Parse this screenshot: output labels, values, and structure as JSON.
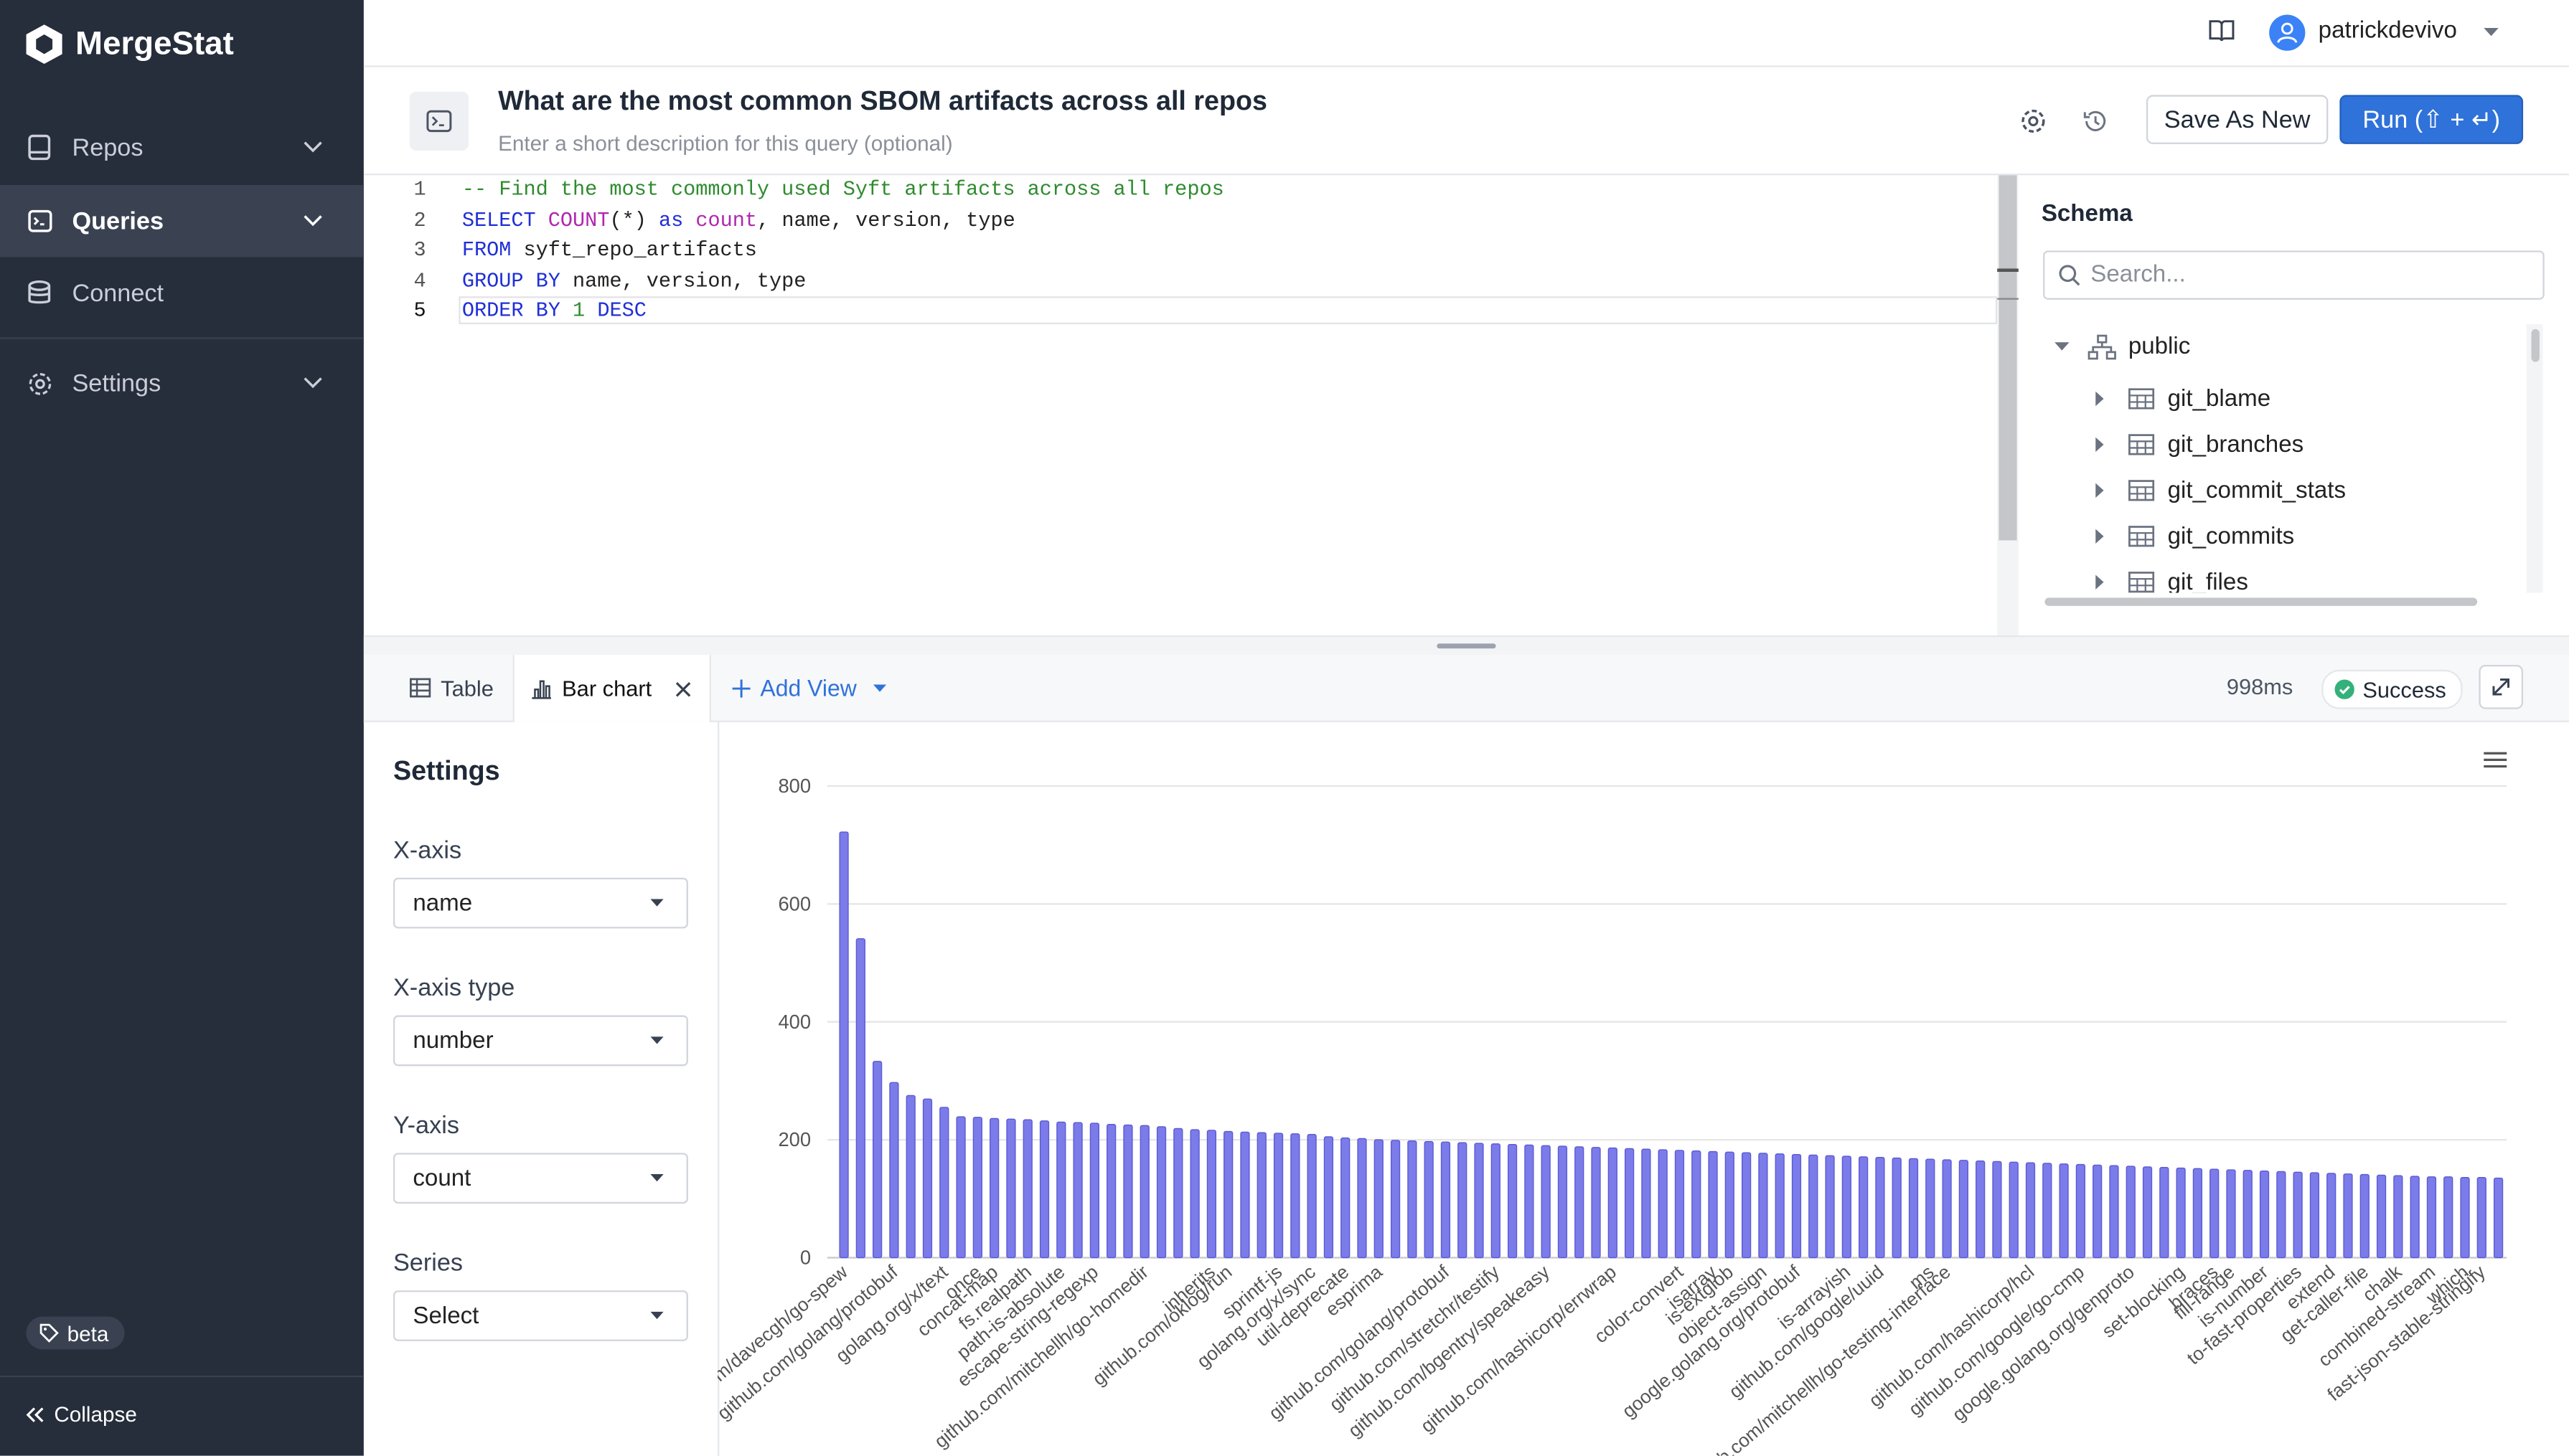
{
  "sidebar": {
    "brand": "MergeStat",
    "nav": [
      {
        "label": "Repos"
      },
      {
        "label": "Queries"
      },
      {
        "label": "Connect"
      },
      {
        "label": "Settings"
      }
    ],
    "badge": "beta",
    "collapse": "Collapse"
  },
  "topbar": {
    "user": "patrickdevivo"
  },
  "query": {
    "title": "What are the most common SBOM artifacts across all repos",
    "description_placeholder": "Enter a short description for this query (optional)",
    "save_button": "Save As New",
    "run_button": "Run (⇧ + ↵)"
  },
  "editor": {
    "lines": [
      {
        "number": 1,
        "tokens": [
          {
            "text": "-- Find the most commonly used Syft artifacts across all repos",
            "color": "#2e8b2e"
          }
        ]
      },
      {
        "number": 2,
        "tokens": [
          {
            "text": "SELECT",
            "color": "#1f2fd6"
          },
          {
            "text": " ",
            "color": "#222222"
          },
          {
            "text": "COUNT",
            "color": "#b026b0"
          },
          {
            "text": "(*) ",
            "color": "#222222"
          },
          {
            "text": "as",
            "color": "#1f2fd6"
          },
          {
            "text": " ",
            "color": "#222222"
          },
          {
            "text": "count",
            "color": "#b026b0"
          },
          {
            "text": ", name, version, type",
            "color": "#222222"
          }
        ]
      },
      {
        "number": 3,
        "tokens": [
          {
            "text": "FROM",
            "color": "#1f2fd6"
          },
          {
            "text": " syft_repo_artifacts",
            "color": "#222222"
          }
        ]
      },
      {
        "number": 4,
        "tokens": [
          {
            "text": "GROUP BY",
            "color": "#1f2fd6"
          },
          {
            "text": " name, version, type",
            "color": "#222222"
          }
        ]
      },
      {
        "number": 5,
        "tokens": [
          {
            "text": "ORDER BY",
            "color": "#1f2fd6"
          },
          {
            "text": " ",
            "color": "#222222"
          },
          {
            "text": "1",
            "color": "#2e8b2e"
          },
          {
            "text": " ",
            "color": "#222222"
          },
          {
            "text": "DESC",
            "color": "#1f2fd6"
          }
        ]
      }
    ]
  },
  "schema": {
    "title": "Schema",
    "search_placeholder": "Search...",
    "root": "public",
    "tables": [
      "git_blame",
      "git_branches",
      "git_commit_stats",
      "git_commits",
      "git_files"
    ]
  },
  "results": {
    "tabs": [
      "Table",
      "Bar chart"
    ],
    "add_view": "Add View",
    "duration": "998ms",
    "status": "Success"
  },
  "settings": {
    "title": "Settings",
    "fields": [
      {
        "label": "X-axis",
        "value": "name"
      },
      {
        "label": "X-axis type",
        "value": "number"
      },
      {
        "label": "Y-axis",
        "value": "count"
      },
      {
        "label": "Series",
        "value": "Select"
      }
    ]
  },
  "chart_data": {
    "type": "bar",
    "color": "#7b7bea",
    "ylim": [
      0,
      800
    ],
    "yticks": [
      0,
      200,
      400,
      600,
      800
    ],
    "grid": true,
    "categories": [
      "github.com/davecgh/go-spew",
      null,
      null,
      "github.com/golang/protobuf",
      null,
      null,
      "golang.org/x/text",
      null,
      "once",
      "concat-map",
      null,
      "fs.realpath",
      null,
      "path-is-absolute",
      null,
      "escape-string-regexp",
      null,
      null,
      "github.com/mitchellh/go-homedir",
      null,
      null,
      null,
      "inherits",
      "github.com/oklog/run",
      null,
      null,
      "sprintf-js",
      null,
      "golang.org/x/sync",
      null,
      "util-deprecate",
      null,
      "esprima",
      null,
      null,
      null,
      "github.com/golang/protobuf",
      null,
      null,
      "github.com/stretchr/testify",
      null,
      null,
      "github.com/bgentry/speakeasy",
      null,
      null,
      null,
      "github.com/hashicorp/errwrap",
      null,
      null,
      null,
      "color-convert",
      null,
      "isarray",
      "is-extglob",
      null,
      "object-assign",
      null,
      "google.golang.org/protobuf",
      null,
      null,
      "is-arrayish",
      null,
      "github.com/google/uuid",
      null,
      null,
      "ms",
      "github.com/mitchellh/go-testing-interface",
      null,
      null,
      null,
      null,
      "github.com/hashicorp/hcl",
      null,
      null,
      "github.com/google/go-cmp",
      null,
      null,
      "google.golang.org/genproto",
      null,
      null,
      "set-blocking",
      null,
      "braces",
      "fill-range",
      null,
      "is-number",
      null,
      "to-fast-properties",
      null,
      "extend",
      null,
      "get-caller-file",
      null,
      "chalk",
      null,
      "combined-stream",
      null,
      "which",
      "fast-json-stable-stringify",
      null
    ],
    "values": [
      722,
      541,
      333,
      297,
      275,
      269,
      255,
      239,
      238,
      236,
      235,
      234,
      232,
      230,
      229,
      228,
      226,
      225,
      224,
      222,
      219,
      217,
      216,
      214,
      213,
      212,
      211,
      210,
      209,
      205,
      203,
      202,
      200,
      199,
      198,
      197,
      196,
      195,
      194,
      193,
      192,
      191,
      190,
      189,
      188,
      187,
      186,
      185,
      184,
      183,
      182,
      181,
      180,
      179,
      178,
      177,
      176,
      175,
      174,
      173,
      172,
      171,
      170,
      169,
      168,
      167,
      166,
      165,
      164,
      163,
      162,
      161,
      160,
      159,
      158,
      157,
      156,
      155,
      154,
      153,
      152,
      151,
      150,
      149,
      148,
      147,
      146,
      145,
      144,
      143,
      142,
      141,
      140,
      139,
      138,
      137,
      137,
      136,
      136,
      135
    ]
  }
}
